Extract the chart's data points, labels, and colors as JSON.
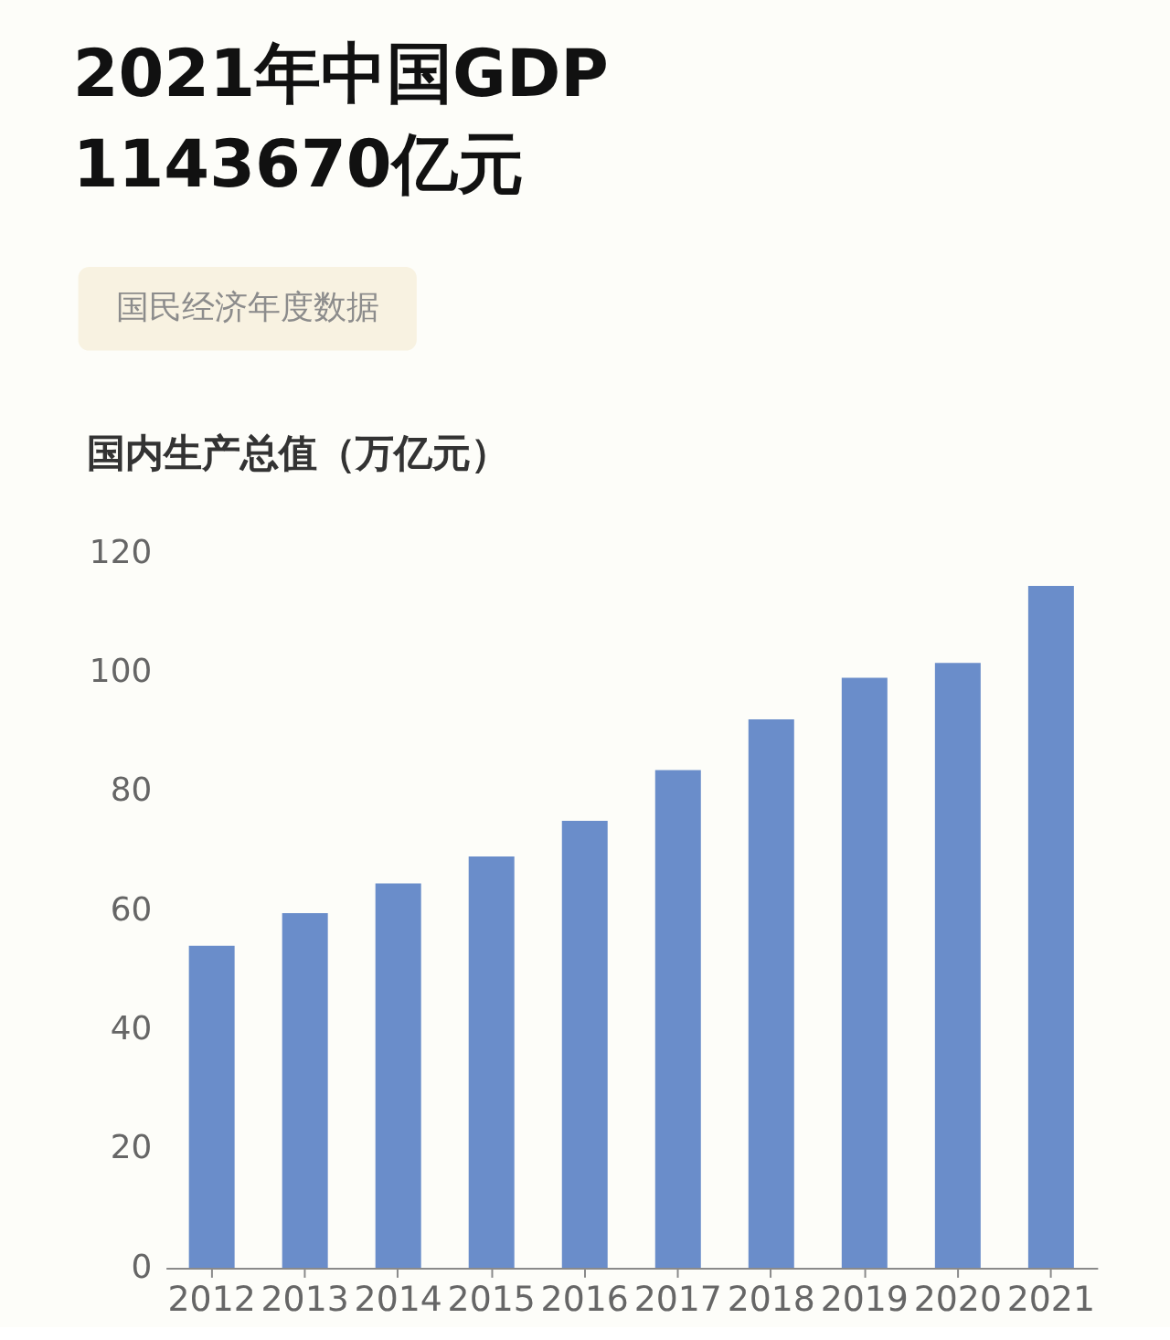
{
  "chart_data": {
    "type": "bar",
    "title": "2021年中国GDP",
    "subtitle": "1143670亿元",
    "ylabel": "国内生产总值（万亿元）",
    "annotations": [
      "国民经济年度数据"
    ],
    "categories": [
      "2012",
      "2013",
      "2014",
      "2015",
      "2016",
      "2017",
      "2018",
      "2019",
      "2020",
      "2021"
    ],
    "values": [
      54,
      59.5,
      64.5,
      69,
      75,
      83.5,
      92,
      99,
      101.5,
      114.4
    ],
    "color": "#6a8dca",
    "ylim": [
      0,
      120
    ],
    "yticks": [
      0,
      20,
      40,
      60,
      80,
      100,
      120
    ]
  }
}
